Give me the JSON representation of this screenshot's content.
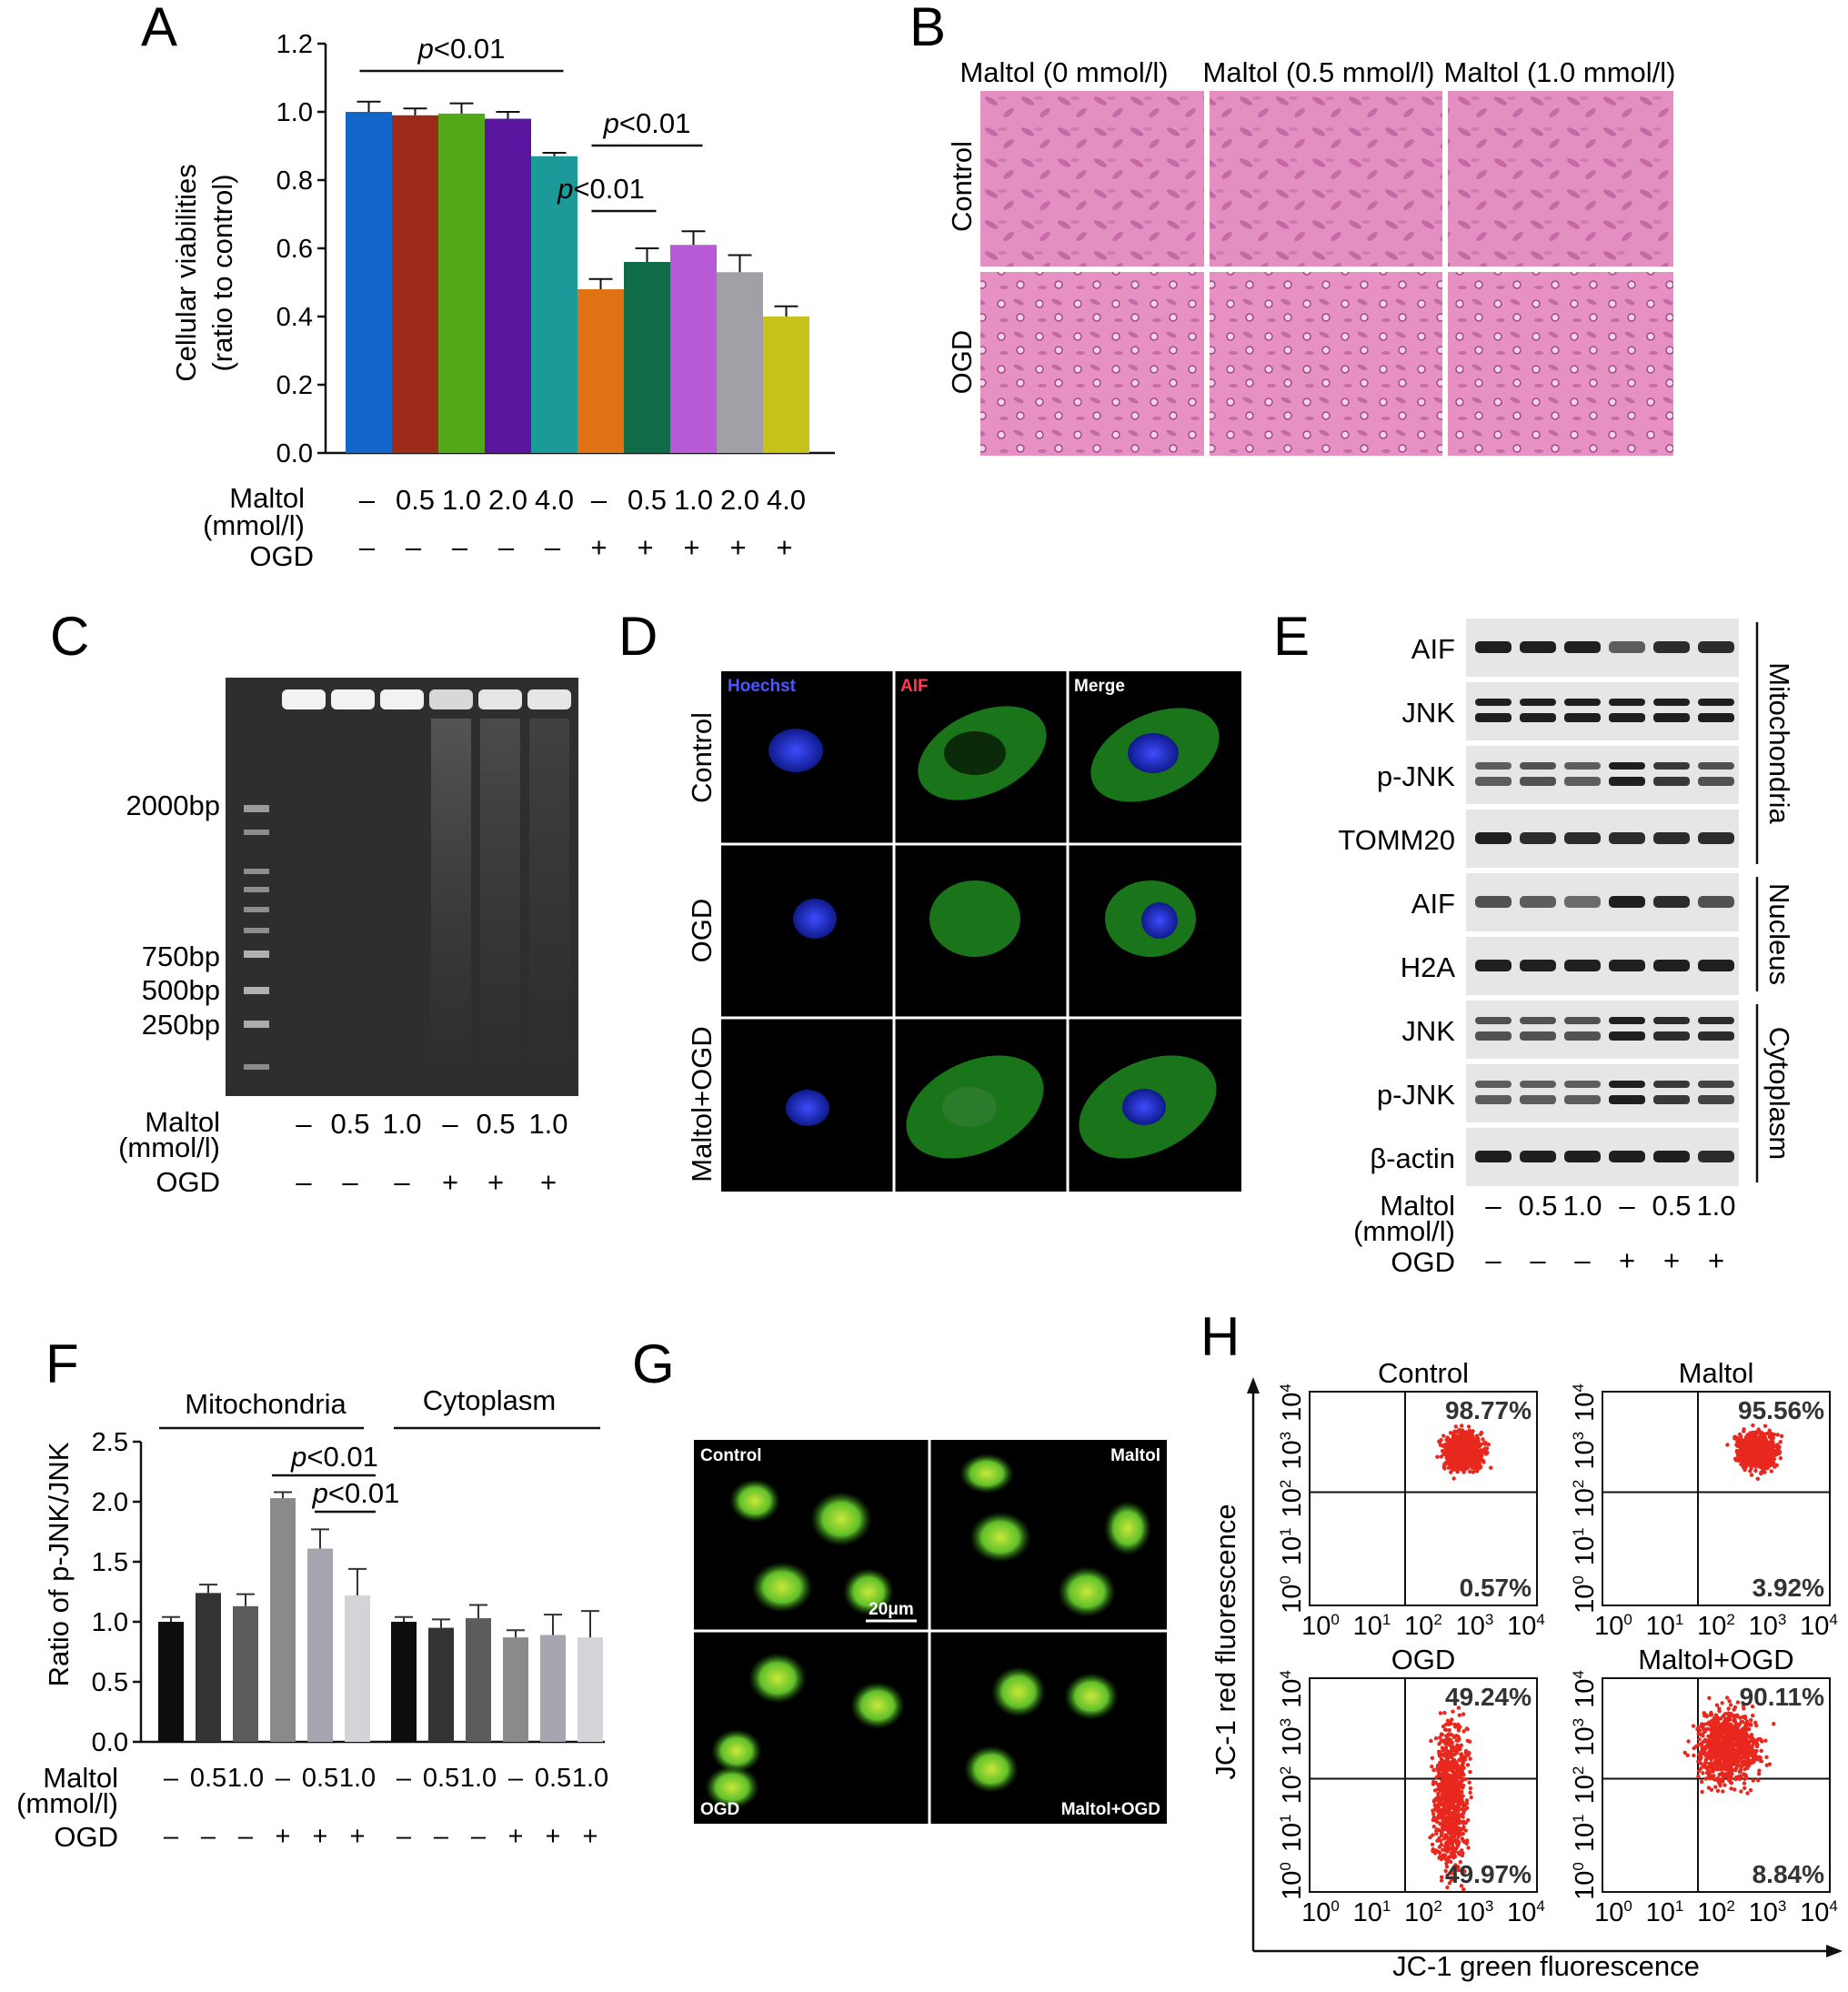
{
  "panel_labels": [
    "A",
    "B",
    "C",
    "D",
    "E",
    "F",
    "G",
    "H"
  ],
  "chart_data": [
    {
      "panel": "A",
      "type": "bar",
      "ylabel_lines": [
        "Cellular viabilities",
        "(ratio to control)"
      ],
      "ylim": [
        0,
        1.2
      ],
      "yticks": [
        "0.0",
        "0.2",
        "0.4",
        "0.6",
        "0.8",
        "1.0",
        "1.2"
      ],
      "values": [
        1.0,
        0.99,
        0.995,
        0.98,
        0.87,
        0.48,
        0.56,
        0.61,
        0.53,
        0.4
      ],
      "errors": [
        0.03,
        0.02,
        0.03,
        0.02,
        0.01,
        0.03,
        0.04,
        0.04,
        0.05,
        0.03
      ],
      "colors": [
        "#1366c9",
        "#9b2a18",
        "#52a816",
        "#5a159e",
        "#1c9a9a",
        "#e07214",
        "#0f6b48",
        "#b85ad8",
        "#a0a0a6",
        "#c7c21a"
      ],
      "row_labels": {
        "maltol_1": "Maltol",
        "maltol_2": "(mmol/l)",
        "ogd": "OGD"
      },
      "maltol_row": [
        "–",
        "0.5",
        "1.0",
        "2.0",
        "4.0",
        "–",
        "0.5",
        "1.0",
        "2.0",
        "4.0"
      ],
      "ogd_row": [
        "–",
        "–",
        "–",
        "–",
        "–",
        "+",
        "+",
        "+",
        "+",
        "+"
      ],
      "significance": [
        {
          "label": "p<0.01",
          "p": "p",
          "rest": "<0.01",
          "from": 0,
          "to": 4
        },
        {
          "label": "p<0.01",
          "p": "p",
          "rest": "<0.01",
          "from": 5,
          "to": 7
        },
        {
          "label": "p<0.01",
          "p": "p",
          "rest": "<0.01",
          "from": 5,
          "to": 6
        }
      ]
    },
    {
      "panel": "F",
      "type": "bar",
      "ylabel": "Ratio of p-JNK/JNK",
      "ylim": [
        0,
        2.5
      ],
      "yticks": [
        "0.0",
        "0.5",
        "1.0",
        "1.5",
        "2.0",
        "2.5"
      ],
      "groups": [
        "Mitochondria",
        "Cytoplasm"
      ],
      "values": [
        1.0,
        1.24,
        1.13,
        2.03,
        1.61,
        1.22,
        1.0,
        0.95,
        1.03,
        0.87,
        0.89,
        0.87
      ],
      "errors": [
        0.04,
        0.07,
        0.1,
        0.05,
        0.16,
        0.22,
        0.04,
        0.07,
        0.11,
        0.06,
        0.17,
        0.22
      ],
      "colors": [
        "#0d0d0d",
        "#333333",
        "#5c5c5c",
        "#8a8a8a",
        "#a6a6b0",
        "#d4d4d8",
        "#0d0d0d",
        "#333333",
        "#5c5c5c",
        "#8a8a8a",
        "#a6a6b0",
        "#d4d4d8"
      ],
      "row_labels": {
        "maltol_1": "Maltol",
        "maltol_2": "(mmol/l)",
        "ogd": "OGD"
      },
      "maltol_row": [
        "–",
        "0.5",
        "1.0",
        "–",
        "0.5",
        "1.0",
        "–",
        "0.5",
        "1.0",
        "–",
        "0.5",
        "1.0"
      ],
      "ogd_row": [
        "–",
        "–",
        "–",
        "+",
        "+",
        "+",
        "–",
        "–",
        "–",
        "+",
        "+",
        "+"
      ],
      "significance": [
        {
          "label": "p<0.01",
          "p": "p",
          "rest": "<0.01",
          "from": 3,
          "to": 5
        },
        {
          "label": "p<0.01",
          "p": "p",
          "rest": "<0.01",
          "from": 4,
          "to": 5
        }
      ]
    },
    {
      "panel": "H",
      "type": "scatter",
      "xlabel": "JC-1 green fluorescence",
      "ylabel": "JC-1 red fluorescence",
      "log_ticks": [
        "0",
        "1",
        "2",
        "3",
        "4"
      ],
      "log_base": "10",
      "plots": [
        {
          "title": "Control",
          "upper_right": "98.77%",
          "lower_right": "0.57%"
        },
        {
          "title": "Maltol",
          "upper_right": "95.56%",
          "lower_right": "3.92%"
        },
        {
          "title": "OGD",
          "upper_right": "49.24%",
          "lower_right": "49.97%"
        },
        {
          "title": "Maltol+OGD",
          "upper_right": "90.11%",
          "lower_right": "8.84%"
        }
      ]
    }
  ],
  "panel_b": {
    "columns": [
      "Maltol (0 mmol/l)",
      "Maltol (0.5 mmol/l)",
      "Maltol (1.0 mmol/l)"
    ],
    "rows": [
      "Control",
      "OGD"
    ]
  },
  "panel_c": {
    "markers": [
      "2000bp",
      "750bp",
      "500bp",
      "250bp"
    ],
    "row_labels": {
      "maltol_1": "Maltol",
      "maltol_2": "(mmol/l)",
      "ogd": "OGD"
    },
    "maltol_row": [
      "–",
      "0.5",
      "1.0",
      "–",
      "0.5",
      "1.0"
    ],
    "ogd_row": [
      "–",
      "–",
      "–",
      "+",
      "+",
      "+"
    ]
  },
  "panel_d": {
    "channels": [
      "Hoechst",
      "AIF",
      "Merge"
    ],
    "rows": [
      "Control",
      "OGD",
      "Maltol+OGD"
    ],
    "channel_colors": [
      "#4a58ff",
      "#ff3c4a",
      "#ffffff"
    ]
  },
  "panel_e": {
    "bands": [
      "AIF",
      "JNK",
      "p-JNK",
      "TOMM20",
      "AIF",
      "H2A",
      "JNK",
      "p-JNK",
      "β-actin"
    ],
    "fractions": [
      "Mitochondria",
      "Nucleus",
      "Cytoplasm"
    ],
    "row_labels": {
      "maltol_1": "Maltol",
      "maltol_2": "(mmol/l)",
      "ogd": "OGD"
    },
    "maltol_row": [
      "–",
      "0.5",
      "1.0",
      "–",
      "0.5",
      "1.0"
    ],
    "ogd_row": [
      "–",
      "–",
      "–",
      "+",
      "+",
      "+"
    ]
  },
  "panel_g": {
    "quadrants": [
      "Control",
      "Maltol",
      "OGD",
      "Maltol+OGD"
    ],
    "scale_bar": "20μm"
  }
}
